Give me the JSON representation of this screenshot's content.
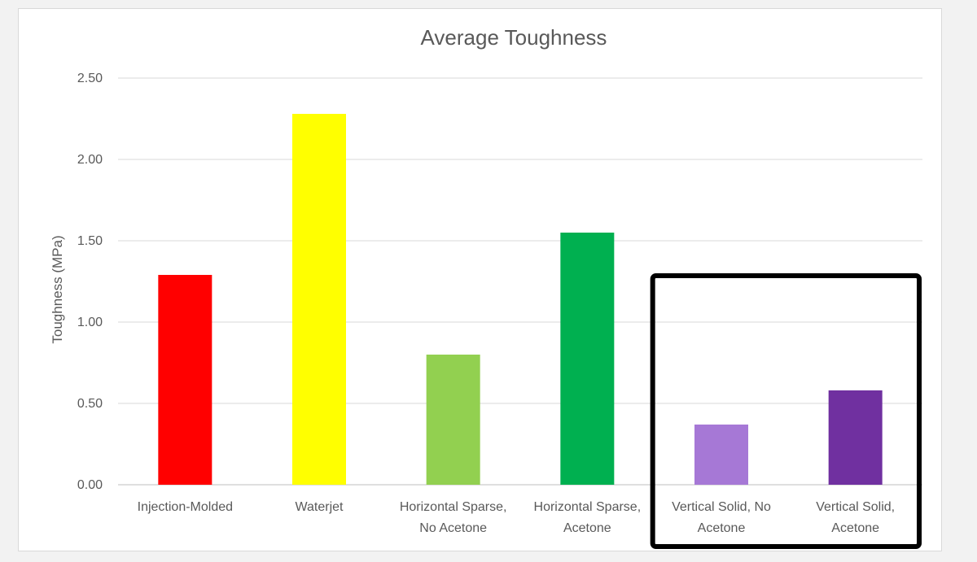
{
  "chart_data": {
    "type": "bar",
    "title": "Average Toughness",
    "xlabel": "",
    "ylabel": "Toughness (MPa)",
    "ylim": [
      0,
      2.5
    ],
    "yticks": [
      "0.00",
      "0.50",
      "1.00",
      "1.50",
      "2.00",
      "2.50"
    ],
    "grid": true,
    "legend": "none",
    "categories": [
      [
        "Injection-Molded"
      ],
      [
        "Waterjet"
      ],
      [
        "Horizontal Sparse,",
        "No Acetone"
      ],
      [
        "Horizontal Sparse,",
        "Acetone"
      ],
      [
        "Vertical Solid, No",
        "Acetone"
      ],
      [
        "Vertical Solid,",
        "Acetone"
      ]
    ],
    "values": [
      1.29,
      2.28,
      0.8,
      1.55,
      0.37,
      0.58
    ],
    "colors": [
      "#ff0000",
      "#ffff00",
      "#92d050",
      "#00b050",
      "#a678d6",
      "#7030a0"
    ],
    "highlight": {
      "categories": [
        4,
        5
      ],
      "color": "#000000"
    }
  }
}
